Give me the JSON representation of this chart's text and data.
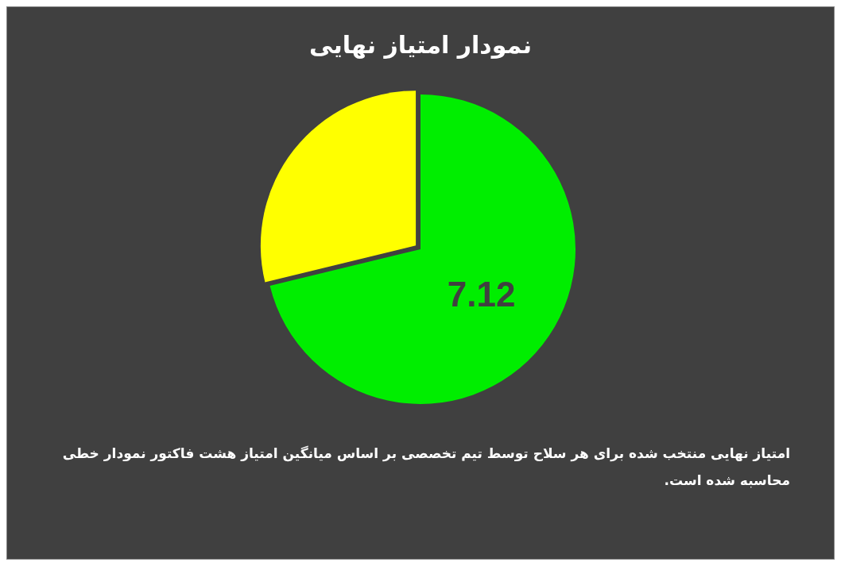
{
  "chart_data": {
    "type": "pie",
    "title": "نمودار امتیاز نهایی",
    "categories": [
      null,
      null
    ],
    "values": [
      7.12,
      2.88
    ],
    "colors": [
      "#00ee00",
      "#ffff00"
    ],
    "value_labels": [
      "7.12",
      null
    ],
    "legend": false,
    "annotations": [
      "امتیاز نهایی منتخب شده برای هر سلاح توسط تیم تخصصی بر اساس میانگین امتیاز هشت فاکتور نمودار خطی محاسبه شده است."
    ]
  }
}
